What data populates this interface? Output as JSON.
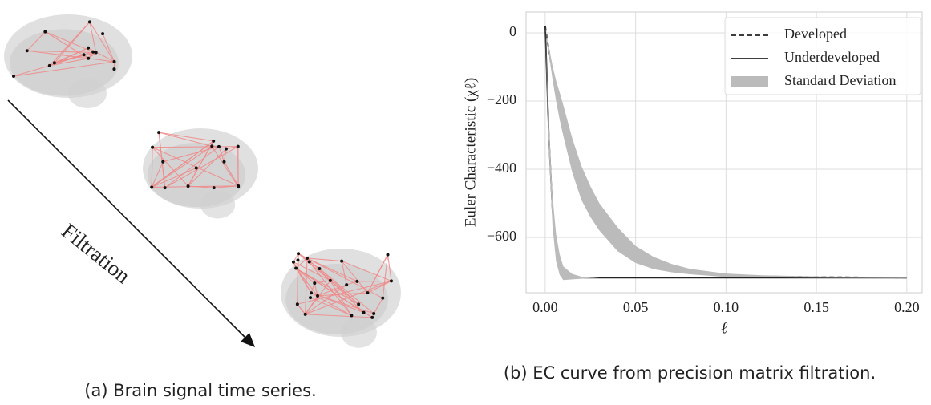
{
  "figure": {
    "left_panel": {
      "arrow_label": "Filtration",
      "caption": "(a) Brain signal time series."
    },
    "right_panel": {
      "caption": "(b) EC curve from precision matrix filtration."
    }
  },
  "chart_data": {
    "type": "line",
    "xlabel": "ℓ",
    "ylabel": "Euler Characteristic (χℓ)",
    "x": [
      0,
      0.002,
      0.004,
      0.006,
      0.008,
      0.01,
      0.015,
      0.02,
      0.025,
      0.03,
      0.04,
      0.05,
      0.06,
      0.07,
      0.08,
      0.1,
      0.12,
      0.15,
      0.2
    ],
    "series": [
      {
        "name": "Developed",
        "color": "#222222",
        "dash": true,
        "values": [
          20,
          -50,
          -115,
          -170,
          -215,
          -257,
          -360,
          -440,
          -495,
          -540,
          -605,
          -650,
          -675,
          -690,
          -700,
          -711,
          -714,
          -716,
          -718
        ]
      },
      {
        "name": "Underdeveloped",
        "color": "#222222",
        "dash": false,
        "values": [
          20,
          -300,
          -520,
          -630,
          -680,
          -705,
          -715,
          -718,
          -718,
          -718,
          -718,
          -718,
          -718,
          -718,
          -718,
          -718,
          -718,
          -718,
          -718
        ]
      },
      {
        "name": "Standard Deviation",
        "color": "#bbbbbb",
        "bands": [
          {
            "lower": [
              20,
              -60,
              -135,
              -200,
              -255,
              -302,
              -410,
              -490,
              -540,
              -580,
              -640,
              -675,
              -693,
              -702,
              -708,
              -716,
              -717,
              -718,
              -719
            ],
            "upper": [
              20,
              -40,
              -95,
              -140,
              -175,
              -212,
              -310,
              -390,
              -450,
              -500,
              -570,
              -625,
              -657,
              -678,
              -692,
              -706,
              -711,
              -714,
              -717
            ]
          },
          {
            "lower": [
              20,
              -340,
              -565,
              -670,
              -710,
              -725,
              -723,
              -721,
              -719,
              -718,
              -718,
              -718,
              -718,
              -718,
              -718,
              -718,
              -718,
              -718,
              -718
            ],
            "upper": [
              20,
              -260,
              -475,
              -590,
              -650,
              -685,
              -707,
              -715,
              -717,
              -718,
              -718,
              -718,
              -718,
              -718,
              -718,
              -718,
              -718,
              -718,
              -718
            ]
          }
        ]
      }
    ],
    "xlim": [
      -0.0106,
      0.2085
    ],
    "ylim": [
      -762,
      61
    ],
    "xticks": [
      {
        "value": 0,
        "label": "0.00"
      },
      {
        "value": 0.05,
        "label": "0.05"
      },
      {
        "value": 0.1,
        "label": "0.10"
      },
      {
        "value": 0.15,
        "label": "0.15"
      },
      {
        "value": 0.2,
        "label": "0.20"
      }
    ],
    "yticks": [
      {
        "value": 0,
        "label": "0"
      },
      {
        "value": -200,
        "label": "−200"
      },
      {
        "value": -400,
        "label": "−400"
      },
      {
        "value": -600,
        "label": "−600"
      }
    ],
    "grid": true,
    "legend": "upper right"
  }
}
